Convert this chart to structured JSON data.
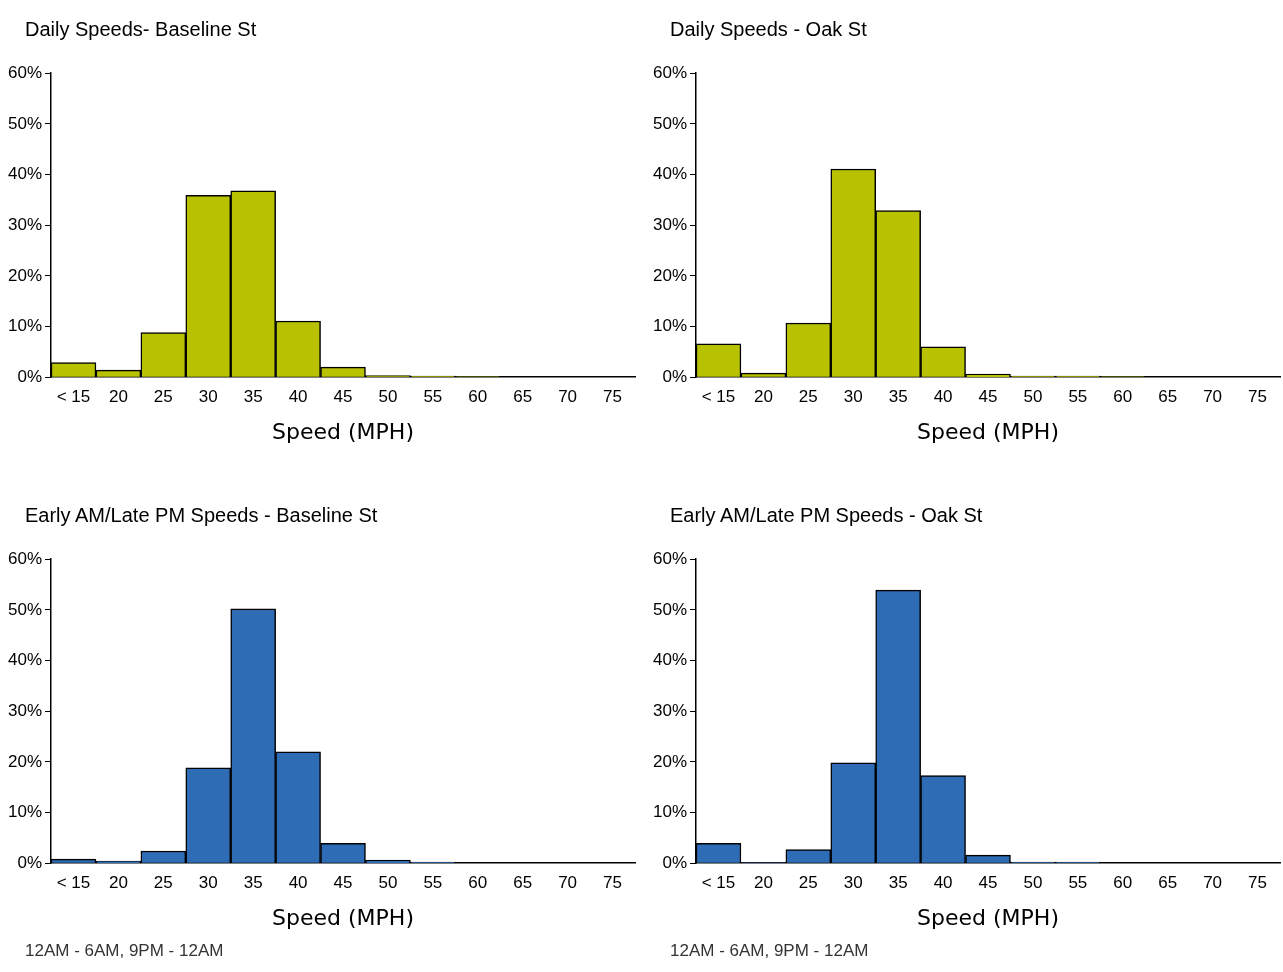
{
  "chart_data": [
    {
      "type": "bar",
      "title": "Daily Speeds- Baseline St",
      "xlabel": "Speed (MPH)",
      "categories": [
        "< 15",
        "20",
        "25",
        "30",
        "35",
        "40",
        "45",
        "50",
        "55",
        "60",
        "65",
        "70",
        "75"
      ],
      "values": [
        2.9,
        1.4,
        8.8,
        35.9,
        36.8,
        11.1,
        2.0,
        0.3,
        0.2,
        0.1,
        0,
        0,
        0
      ],
      "color": "#b8c200",
      "ylim": [
        0,
        60
      ],
      "yticks": [
        {
          "value": 0,
          "label": "0%"
        },
        {
          "value": 10,
          "label": "10%"
        },
        {
          "value": 20,
          "label": "20%"
        },
        {
          "value": 30,
          "label": "30%"
        },
        {
          "value": 40,
          "label": "40%"
        },
        {
          "value": 50,
          "label": "50%"
        },
        {
          "value": 60,
          "label": "60%"
        }
      ],
      "grid": false,
      "legend": false
    },
    {
      "type": "bar",
      "title": "Daily Speeds - Oak St",
      "xlabel": "Speed (MPH)",
      "categories": [
        "< 15",
        "20",
        "25",
        "30",
        "35",
        "40",
        "45",
        "50",
        "55",
        "60",
        "65",
        "70",
        "75"
      ],
      "values": [
        6.6,
        0.8,
        10.7,
        41.1,
        32.9,
        6.0,
        0.6,
        0.2,
        0.2,
        0.1,
        0,
        0,
        0
      ],
      "color": "#b8c200",
      "ylim": [
        0,
        60
      ],
      "yticks": [
        {
          "value": 0,
          "label": "0%"
        },
        {
          "value": 10,
          "label": "10%"
        },
        {
          "value": 20,
          "label": "20%"
        },
        {
          "value": 30,
          "label": "30%"
        },
        {
          "value": 40,
          "label": "40%"
        },
        {
          "value": 50,
          "label": "50%"
        },
        {
          "value": 60,
          "label": "60%"
        }
      ],
      "grid": false,
      "legend": false
    },
    {
      "type": "bar",
      "title": "Early AM/Late PM Speeds - Baseline St",
      "xlabel": "Speed (MPH)",
      "categories": [
        "< 15",
        "20",
        "25",
        "30",
        "35",
        "40",
        "45",
        "50",
        "55",
        "60",
        "65",
        "70",
        "75"
      ],
      "values": [
        0.8,
        0.4,
        2.4,
        18.8,
        50.2,
        22.0,
        3.9,
        0.6,
        0.2,
        0,
        0,
        0,
        0
      ],
      "color": "#2e6db5",
      "ylim": [
        0,
        60
      ],
      "yticks": [
        {
          "value": 0,
          "label": "0%"
        },
        {
          "value": 10,
          "label": "10%"
        },
        {
          "value": 20,
          "label": "20%"
        },
        {
          "value": 30,
          "label": "30%"
        },
        {
          "value": 40,
          "label": "40%"
        },
        {
          "value": 50,
          "label": "50%"
        },
        {
          "value": 60,
          "label": "60%"
        }
      ],
      "grid": false,
      "legend": false,
      "annotations": [
        "12AM - 6AM, 9PM - 12AM"
      ]
    },
    {
      "type": "bar",
      "title": "Early AM/Late PM Speeds - Oak St",
      "xlabel": "Speed (MPH)",
      "categories": [
        "< 15",
        "20",
        "25",
        "30",
        "35",
        "40",
        "45",
        "50",
        "55",
        "60",
        "65",
        "70",
        "75"
      ],
      "values": [
        3.9,
        0.1,
        2.7,
        19.8,
        53.9,
        17.3,
        1.6,
        0.2,
        0.2,
        0,
        0,
        0,
        0
      ],
      "color": "#2e6db5",
      "ylim": [
        0,
        60
      ],
      "yticks": [
        {
          "value": 0,
          "label": "0%"
        },
        {
          "value": 10,
          "label": "10%"
        },
        {
          "value": 20,
          "label": "20%"
        },
        {
          "value": 30,
          "label": "30%"
        },
        {
          "value": 40,
          "label": "40%"
        },
        {
          "value": 50,
          "label": "50%"
        },
        {
          "value": 60,
          "label": "60%"
        }
      ],
      "grid": false,
      "legend": false,
      "annotations": [
        "12AM - 6AM, 9PM - 12AM"
      ]
    }
  ]
}
